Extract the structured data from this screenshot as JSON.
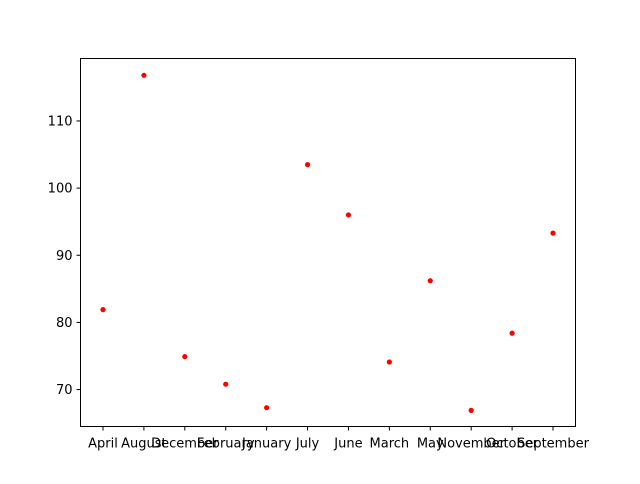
{
  "chart_data": {
    "type": "scatter",
    "categories": [
      "April",
      "August",
      "December",
      "February",
      "January",
      "July",
      "June",
      "March",
      "May",
      "November",
      "October",
      "September"
    ],
    "series": [
      {
        "values": [
          81.9,
          116.8,
          74.9,
          70.8,
          67.3,
          103.5,
          96.0,
          74.1,
          86.2,
          66.9,
          78.4,
          93.3
        ],
        "color": "#ff0000"
      }
    ],
    "ylim": [
      64.5,
      119.3
    ],
    "yticks": [
      70,
      80,
      90,
      100,
      110
    ],
    "title": "",
    "xlabel": "",
    "ylabel": "",
    "grid": false,
    "legend": "none"
  }
}
